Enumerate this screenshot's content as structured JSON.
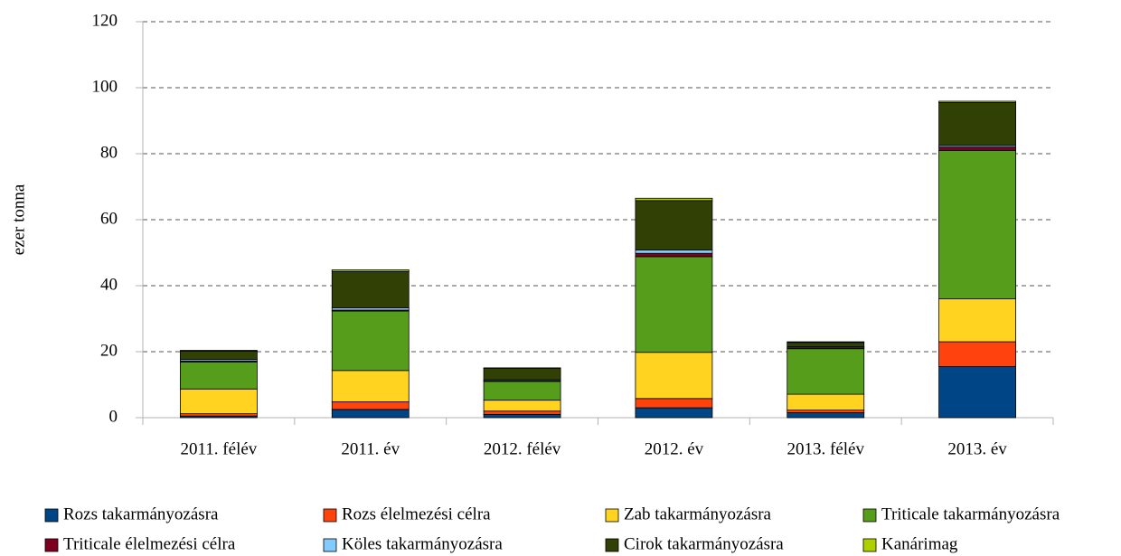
{
  "chart_data": {
    "type": "bar",
    "stacked": true,
    "ylabel": "ezer tonna",
    "categories": [
      "2011. félév",
      "2011. év",
      "2012. félév",
      "2012. év",
      "2013. félév",
      "2013. év"
    ],
    "series": [
      {
        "name": "Rozs takarmányozásra",
        "color": "#004586",
        "values": [
          0.5,
          2.5,
          1,
          3,
          1.5,
          15.5
        ]
      },
      {
        "name": "Rozs élelmezési célra",
        "color": "#ff420e",
        "values": [
          0.7,
          2.3,
          1,
          2.8,
          0.8,
          7.5
        ]
      },
      {
        "name": "Zab takarmányozásra",
        "color": "#ffd320",
        "values": [
          7.5,
          9.5,
          3.3,
          14,
          4.8,
          13
        ]
      },
      {
        "name": "Triticale takarmányozásra",
        "color": "#579d1c",
        "values": [
          8.2,
          18,
          5.7,
          29,
          13.8,
          45
        ]
      },
      {
        "name": "Triticale élelmezési célra",
        "color": "#7e0021",
        "values": [
          0.3,
          0.3,
          0.2,
          1,
          0.3,
          1
        ]
      },
      {
        "name": "Köles takarmányozásra",
        "color": "#83caff",
        "values": [
          0.5,
          0.7,
          0.3,
          1,
          0.3,
          0.5
        ]
      },
      {
        "name": "Cirok takarmányozásra",
        "color": "#314004",
        "values": [
          2.5,
          11,
          3.5,
          15,
          1.3,
          13
        ]
      },
      {
        "name": "Kanárimag",
        "color": "#aecf00",
        "values": [
          0.2,
          0.5,
          0.1,
          0.7,
          0.2,
          0.4
        ]
      }
    ],
    "ylim": [
      0,
      120
    ],
    "yticks": [
      0,
      20,
      40,
      60,
      80,
      100,
      120
    ],
    "grid": true,
    "legend": "bottom"
  }
}
